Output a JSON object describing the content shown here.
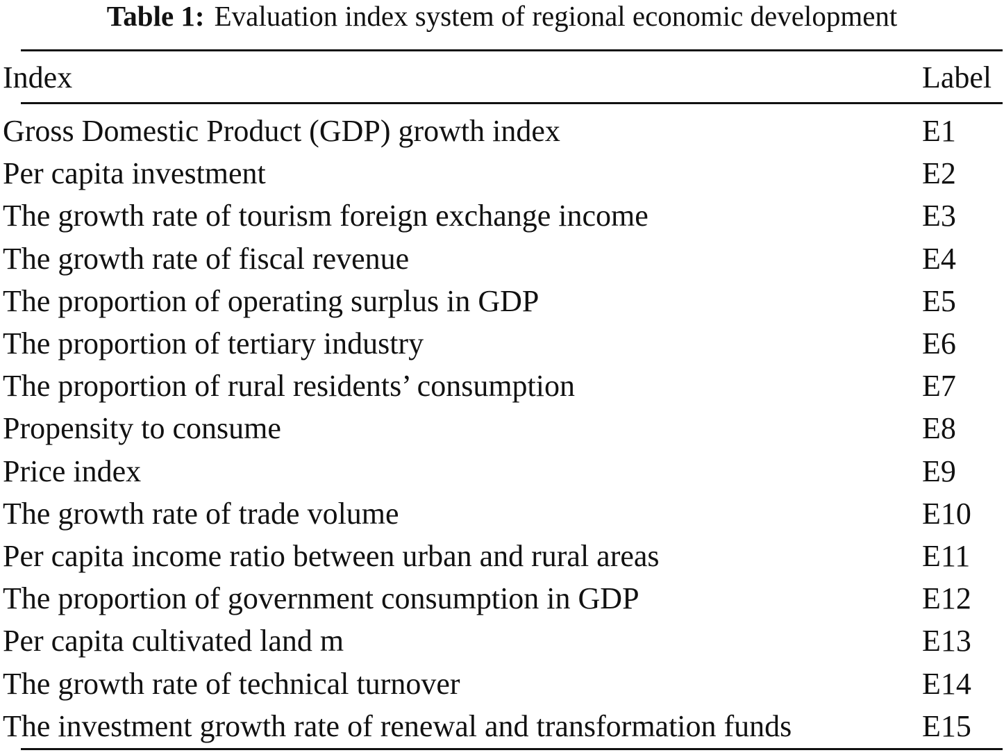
{
  "caption": {
    "label": "Table 1:",
    "title": "Evaluation index system of regional economic development"
  },
  "table": {
    "headers": {
      "index": "Index",
      "label": "Label"
    },
    "rows": [
      {
        "index": "Gross Domestic Product (GDP) growth index",
        "label": "E1"
      },
      {
        "index": "Per capita investment",
        "label": "E2"
      },
      {
        "index": "The growth rate of tourism foreign exchange income",
        "label": "E3"
      },
      {
        "index": "The growth rate of fiscal revenue",
        "label": "E4"
      },
      {
        "index": "The proportion of operating surplus in GDP",
        "label": "E5"
      },
      {
        "index": "The proportion of tertiary industry",
        "label": "E6"
      },
      {
        "index": "The proportion of rural residents’ consumption",
        "label": "E7"
      },
      {
        "index": "Propensity to consume",
        "label": "E8"
      },
      {
        "index": "Price index",
        "label": "E9"
      },
      {
        "index": "The growth rate of trade volume",
        "label": "E10"
      },
      {
        "index": "Per capita income ratio between urban and rural areas",
        "label": "E11"
      },
      {
        "index": "The proportion of government consumption in GDP",
        "label": "E12"
      },
      {
        "index": "Per capita cultivated land m",
        "label": "E13"
      },
      {
        "index": "The growth rate of technical turnover",
        "label": "E14"
      },
      {
        "index": "The investment growth rate of renewal and transformation funds",
        "label": "E15"
      }
    ]
  }
}
